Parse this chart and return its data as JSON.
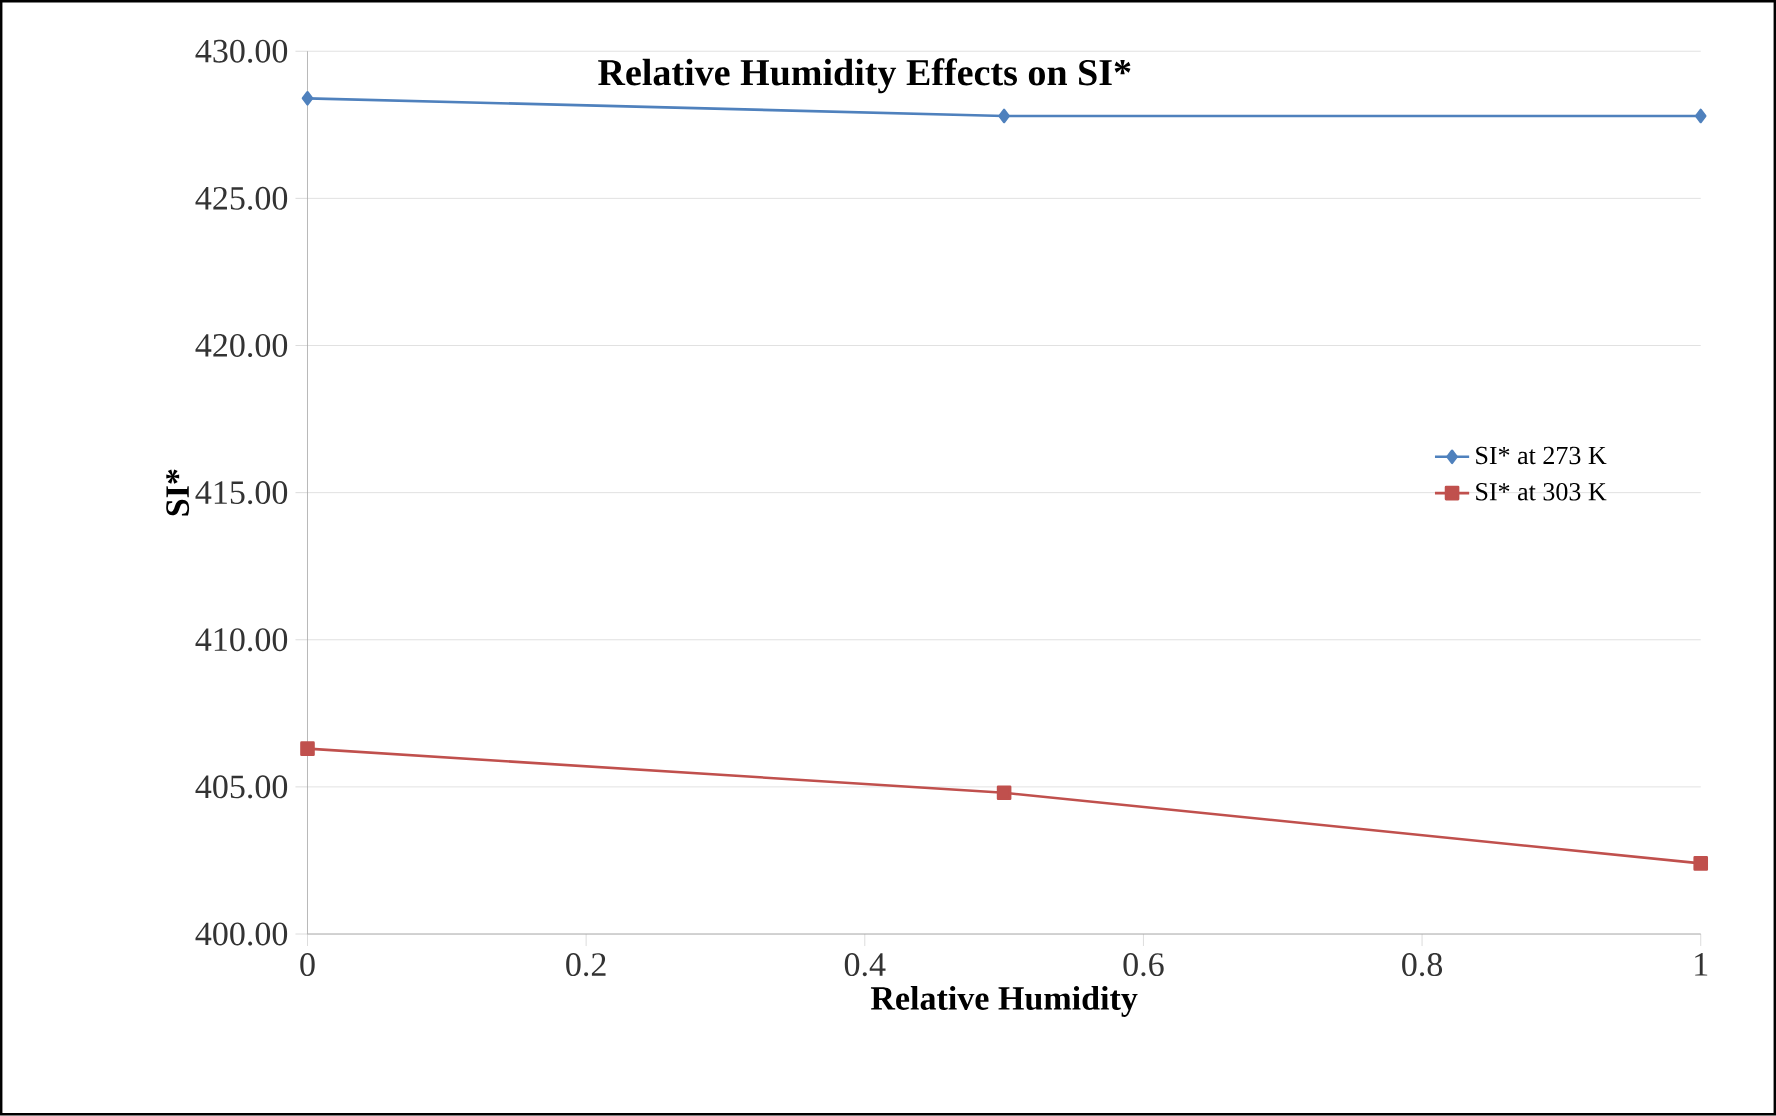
{
  "chart_data": {
    "type": "line",
    "title": "Relative Humidity Effects on SI*",
    "xlabel": "Relative Humidity",
    "ylabel": "SI*",
    "x": [
      0,
      0.5,
      1
    ],
    "series": [
      {
        "name": "SI* at 273 K",
        "color": "#4f81bd",
        "marker": "diamond",
        "values": [
          428.4,
          427.8,
          427.8
        ]
      },
      {
        "name": "SI* at 303 K",
        "color": "#c0504d",
        "marker": "square",
        "values": [
          406.3,
          404.8,
          402.4
        ]
      }
    ],
    "xlim": [
      0,
      1
    ],
    "xticks": [
      0,
      0.2,
      0.4,
      0.6,
      0.8,
      1
    ],
    "ylim": [
      400,
      430
    ],
    "yticks": [
      {
        "value": 400,
        "label": "400.00"
      },
      {
        "value": 405,
        "label": "405.00"
      },
      {
        "value": 410,
        "label": "410.00"
      },
      {
        "value": 415,
        "label": "415.00"
      },
      {
        "value": 420,
        "label": "420.00"
      },
      {
        "value": 425,
        "label": "425.00"
      },
      {
        "value": 430,
        "label": "430.00"
      }
    ],
    "grid": "y",
    "legend": "right"
  }
}
